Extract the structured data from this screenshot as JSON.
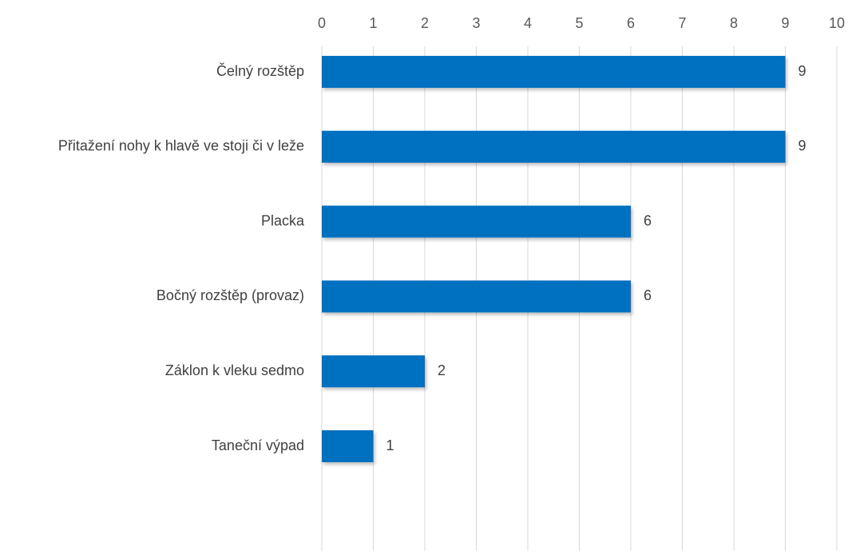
{
  "chart_data": {
    "type": "bar",
    "orientation": "horizontal",
    "categories": [
      "Čelný rozštěp",
      "Přitažení nohy k hlavě ve stoji či v leže",
      "Placka",
      "Bočný rozštěp (provaz)",
      "Záklon k vleku sedmo",
      "Taneční výpad"
    ],
    "values": [
      9,
      9,
      6,
      6,
      2,
      1
    ],
    "xlim": [
      0,
      10
    ],
    "x_ticks": [
      0,
      1,
      2,
      3,
      4,
      5,
      6,
      7,
      8,
      9,
      10
    ],
    "x_axis_position": "top",
    "grid": true,
    "legend": "none",
    "data_labels": true,
    "bar_color": "#0070C0"
  }
}
